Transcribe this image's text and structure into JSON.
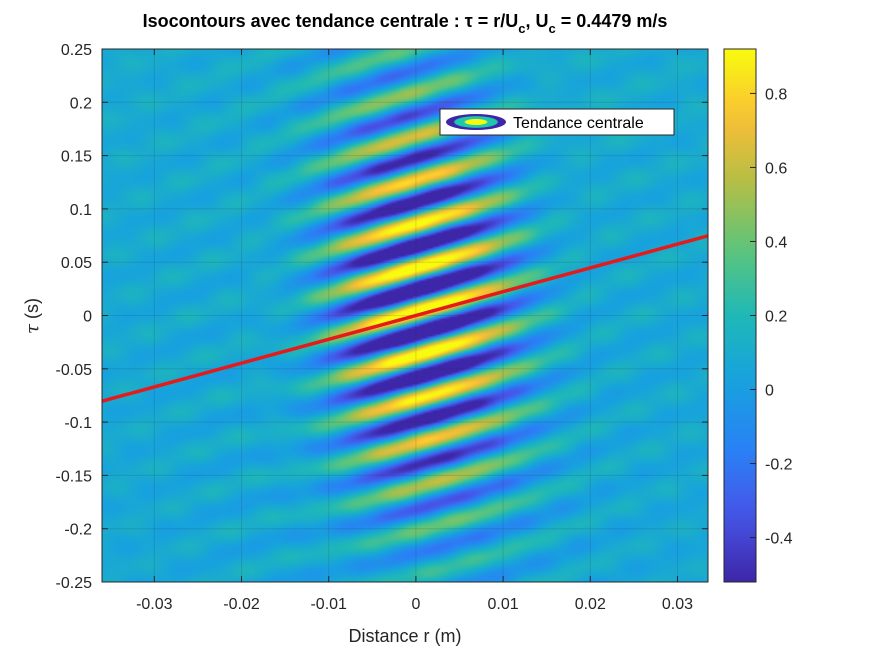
{
  "chart_data": {
    "type": "heatmap",
    "title": {
      "main": "Isocontours avec tendance centrale : τ = r/U",
      "sub1": "c",
      "mid": ", U",
      "sub2": "c",
      "tail": " = 0.4479 m/s"
    },
    "xlabel": "Distance r (m)",
    "ylabel_symbol": "τ",
    "ylabel_unit": " (s)",
    "xlim": [
      -0.036,
      0.0335
    ],
    "ylim": [
      -0.25,
      0.25
    ],
    "xticks": [
      -0.03,
      -0.02,
      -0.01,
      0,
      0.01,
      0.02,
      0.03
    ],
    "xtick_labels": [
      "-0.03",
      "-0.02",
      "-0.01",
      "0",
      "0.01",
      "0.02",
      "0.03"
    ],
    "yticks": [
      -0.25,
      -0.2,
      -0.15,
      -0.1,
      -0.05,
      0,
      0.05,
      0.1,
      0.15,
      0.2,
      0.25
    ],
    "ytick_labels": [
      "-0.25",
      "-0.2",
      "-0.15",
      "-0.1",
      "-0.05",
      "0",
      "0.05",
      "0.1",
      "0.15",
      "0.2",
      "0.25"
    ],
    "grid": true,
    "colormap": "parula",
    "clim": [
      -0.52,
      0.92
    ],
    "colorbar_ticks": [
      -0.4,
      -0.2,
      0,
      0.2,
      0.4,
      0.6,
      0.8
    ],
    "colorbar_tick_labels": [
      "-0.4",
      "-0.2",
      "0",
      "0.2",
      "0.4",
      "0.6",
      "0.8"
    ],
    "convection_velocity": 0.4479,
    "trend_line": {
      "name": "Tendance centrale",
      "color": "#e61a1a",
      "x": [
        -0.036,
        0.0335
      ],
      "y": [
        -0.0804,
        0.0748
      ]
    },
    "legend": {
      "label": "Tendance centrale",
      "position": "top-right"
    }
  }
}
